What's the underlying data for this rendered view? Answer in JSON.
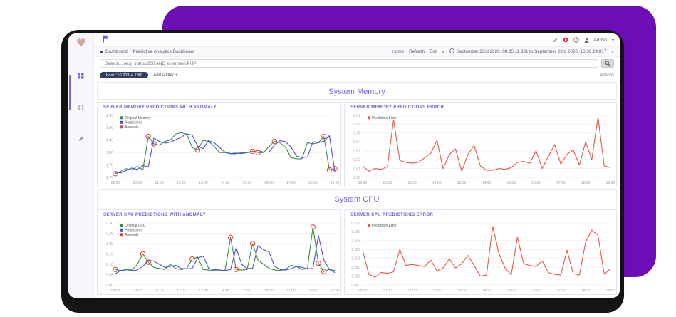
{
  "window_title": "Predictive Analytics Dashboard",
  "sidebar": {
    "logo_icon": "heart-logo",
    "items": [
      {
        "icon": "dashboard-icon"
      },
      {
        "icon": "dev-console-icon"
      },
      {
        "icon": "edit-pencil-icon"
      }
    ]
  },
  "topbar": {
    "brand_icon": "flag-icon",
    "icons": [
      "edit-icon",
      "notification-badge",
      "help-icon",
      "user-icon"
    ],
    "user": "Admin"
  },
  "nav": {
    "breadcrumb": {
      "home_icon": "home-icon",
      "section": "Dashboard",
      "separator": "/",
      "page": "Predictive Analytics Dashboard"
    },
    "links": [
      "Home",
      "Refresh",
      "Edit"
    ],
    "time_prev": "‹",
    "time_next": "›",
    "clock_icon": "clock-icon",
    "time_range": "September 23rd 2020, 08:35:11.301 to September 23rd 2020, 16:38:24.817"
  },
  "search": {
    "placeholder": "Search... (e.g. status:200 AND extension:PHP)",
    "button_icon": "search-icon"
  },
  "filters": {
    "pill": "host: '10.221.4.138'",
    "add_filter": "Add a filter +",
    "actions": "Actions"
  },
  "sections": [
    {
      "title": "System Memory"
    },
    {
      "title": "System CPU"
    }
  ],
  "colors": {
    "accent_purple": "#6d0db5",
    "heading_purple": "#7468e0",
    "panel_title_purple": "#6a5fd6",
    "series_green": "#3e8e41",
    "series_blue": "#4a50e0",
    "series_red": "#e4574e",
    "anomaly_ring": "#e0433a",
    "filter_pill_navy": "#333c63"
  },
  "chart_data": [
    {
      "type": "line",
      "title": "SERVER MEMORY PREDICTIONS WITH ANOMALY",
      "x_labels": [
        "09:00",
        "10:00",
        "11:00",
        "12:00",
        "13:00",
        "14:00",
        "15:00",
        "16:00",
        "17:00",
        "18:00",
        "19:00"
      ],
      "y_ticks": [
        "1.95",
        "1.90",
        "1.85",
        "1.80",
        "1.75",
        "1.70"
      ],
      "y_min": 1.7,
      "y_max": 1.95,
      "grid": true,
      "legend_position": "top-left",
      "legend": [
        {
          "label": "Original Memory",
          "color": "#3e8e41"
        },
        {
          "label": "Predictions",
          "color": "#4a50e0"
        },
        {
          "label": "Anomaly",
          "color": "#e0433a"
        }
      ],
      "series": [
        {
          "name": "Original Memory",
          "color": "#3e8e41",
          "values": [
            1.715,
            1.725,
            1.735,
            1.73,
            1.745,
            1.73,
            1.865,
            1.835,
            1.83,
            1.845,
            1.85,
            1.875,
            1.88,
            1.875,
            1.82,
            1.81,
            1.85,
            1.845,
            1.825,
            1.8,
            1.8,
            1.795,
            1.795,
            1.8,
            1.8,
            1.805,
            1.8,
            1.8,
            1.825,
            1.845,
            1.84,
            1.82,
            1.78,
            1.775,
            1.775,
            1.84,
            1.835,
            1.84,
            1.865,
            1.73,
            1.735
          ]
        },
        {
          "name": "Predictions",
          "color": "#4a50e0",
          "values": [
            1.72,
            1.718,
            1.728,
            1.738,
            1.732,
            1.748,
            1.742,
            1.858,
            1.845,
            1.838,
            1.842,
            1.852,
            1.862,
            1.876,
            1.87,
            1.826,
            1.816,
            1.848,
            1.84,
            1.82,
            1.802,
            1.796,
            1.798,
            1.796,
            1.8,
            1.802,
            1.808,
            1.802,
            1.802,
            1.83,
            1.848,
            1.844,
            1.822,
            1.786,
            1.78,
            1.782,
            1.844,
            1.84,
            1.846,
            1.868,
            1.722
          ]
        }
      ],
      "anomaly_color": "#e0433a",
      "anomalies": [
        [
          0,
          1.715
        ],
        [
          6,
          1.865
        ],
        [
          7,
          1.835
        ],
        [
          15,
          1.81
        ],
        [
          25,
          1.805
        ],
        [
          26,
          1.8
        ],
        [
          29,
          1.845
        ],
        [
          38,
          1.865
        ],
        [
          39,
          1.73
        ],
        [
          40,
          1.735
        ]
      ]
    },
    {
      "type": "line",
      "title": "SERVER MEMORY PREDICTIONS ERROR",
      "x_labels": [
        "09:00",
        "10:00",
        "11:00",
        "12:00",
        "13:00",
        "14:00",
        "15:00",
        "16:00",
        "17:00",
        "18:00",
        "19:00"
      ],
      "y_ticks": [
        "0.07",
        "0.06",
        "0.05",
        "0.04",
        "0.03",
        "0.02",
        "0.01",
        "0.00"
      ],
      "y_min": 0,
      "y_max": 0.07,
      "grid": true,
      "legend_position": "top-left",
      "legend": [
        {
          "label": "Prediction Error",
          "color": "#e4574e"
        }
      ],
      "series": [
        {
          "name": "Prediction Error",
          "color": "#e4574e",
          "values": [
            0.013,
            0.007,
            0.01,
            0.009,
            0.012,
            0.065,
            0.019,
            0.017,
            0.016,
            0.017,
            0.022,
            0.027,
            0.042,
            0.01,
            0.026,
            0.032,
            0.007,
            0.026,
            0.036,
            0.013,
            0.008,
            0.008,
            0.01,
            0.009,
            0.011,
            0.017,
            0.018,
            0.016,
            0.03,
            0.01,
            0.024,
            0.037,
            0.015,
            0.026,
            0.031,
            0.014,
            0.04,
            0.02,
            0.068,
            0.013,
            0.011
          ]
        }
      ],
      "anomaly_color": "#e0433a",
      "anomalies": []
    },
    {
      "type": "line",
      "title": "SERVER CPU PREDICTIONS WITH ANOMALY",
      "x_labels": [
        "09:00",
        "10:00",
        "11:00",
        "12:00",
        "13:00",
        "14:00",
        "15:00",
        "16:00",
        "17:00",
        "18:00",
        "19:00"
      ],
      "y_ticks": [
        "0.30",
        "0.25",
        "0.20",
        "0.15",
        "0.10",
        "0.05",
        "0.00"
      ],
      "y_min": 0,
      "y_max": 0.3,
      "grid": true,
      "legend_position": "top-left",
      "legend": [
        {
          "label": "Original CPU",
          "color": "#3e8e41"
        },
        {
          "label": "Predictions",
          "color": "#4a50e0"
        },
        {
          "label": "Anomaly",
          "color": "#e0433a"
        }
      ],
      "series": [
        {
          "name": "Original CPU",
          "color": "#3e8e41",
          "values": [
            0.075,
            0.07,
            0.075,
            0.072,
            0.1,
            0.15,
            0.11,
            0.085,
            0.08,
            0.075,
            0.1,
            0.08,
            0.075,
            0.08,
            0.125,
            0.135,
            0.075,
            0.072,
            0.07,
            0.068,
            0.072,
            0.23,
            0.075,
            0.072,
            0.075,
            0.2,
            0.12,
            0.1,
            0.08,
            0.072,
            0.07,
            0.075,
            0.095,
            0.09,
            0.075,
            0.08,
            0.28,
            0.105,
            0.065,
            0.075,
            0.07
          ]
        },
        {
          "name": "Predictions",
          "color": "#4a50e0",
          "values": [
            0.055,
            0.07,
            0.068,
            0.07,
            0.072,
            0.09,
            0.12,
            0.115,
            0.1,
            0.085,
            0.09,
            0.095,
            0.08,
            0.078,
            0.08,
            0.13,
            0.14,
            0.08,
            0.075,
            0.072,
            0.07,
            0.075,
            0.18,
            0.1,
            0.08,
            0.08,
            0.19,
            0.17,
            0.16,
            0.09,
            0.075,
            0.072,
            0.078,
            0.09,
            0.085,
            0.078,
            0.08,
            0.24,
            0.12,
            0.075,
            0.06
          ]
        }
      ],
      "anomaly_color": "#e0433a",
      "anomalies": [
        [
          0,
          0.075
        ],
        [
          5,
          0.15
        ],
        [
          6,
          0.11
        ],
        [
          14,
          0.125
        ],
        [
          21,
          0.23
        ],
        [
          22,
          0.075
        ],
        [
          25,
          0.2
        ],
        [
          36,
          0.28
        ],
        [
          37,
          0.105
        ],
        [
          38,
          0.065
        ]
      ]
    },
    {
      "type": "line",
      "title": "SERVER CPU PREDICTIONS ERROR",
      "x_labels": [
        "09:00",
        "10:00",
        "11:00",
        "12:00",
        "13:00",
        "14:00",
        "15:00",
        "16:00",
        "17:00",
        "18:00",
        "19:00"
      ],
      "y_ticks": [
        "0.175",
        "0.150",
        "0.125",
        "0.100",
        "0.075",
        "0.050",
        "0.025",
        "0.000"
      ],
      "y_min": 0,
      "y_max": 0.175,
      "grid": true,
      "legend_position": "top-left",
      "legend": [
        {
          "label": "Prediction Error",
          "color": "#e4574e"
        }
      ],
      "series": [
        {
          "name": "Prediction Error",
          "color": "#e4574e",
          "values": [
            0.098,
            0.03,
            0.022,
            0.035,
            0.033,
            0.037,
            0.1,
            0.055,
            0.058,
            0.055,
            0.052,
            0.07,
            0.04,
            0.048,
            0.073,
            0.048,
            0.06,
            0.083,
            0.055,
            0.025,
            0.028,
            0.165,
            0.09,
            0.048,
            0.028,
            0.135,
            0.06,
            0.055,
            0.052,
            0.068,
            0.035,
            0.03,
            0.028,
            0.098,
            0.032,
            0.028,
            0.12,
            0.155,
            0.14,
            0.03,
            0.045
          ]
        }
      ],
      "anomaly_color": "#e0433a",
      "anomalies": []
    }
  ]
}
